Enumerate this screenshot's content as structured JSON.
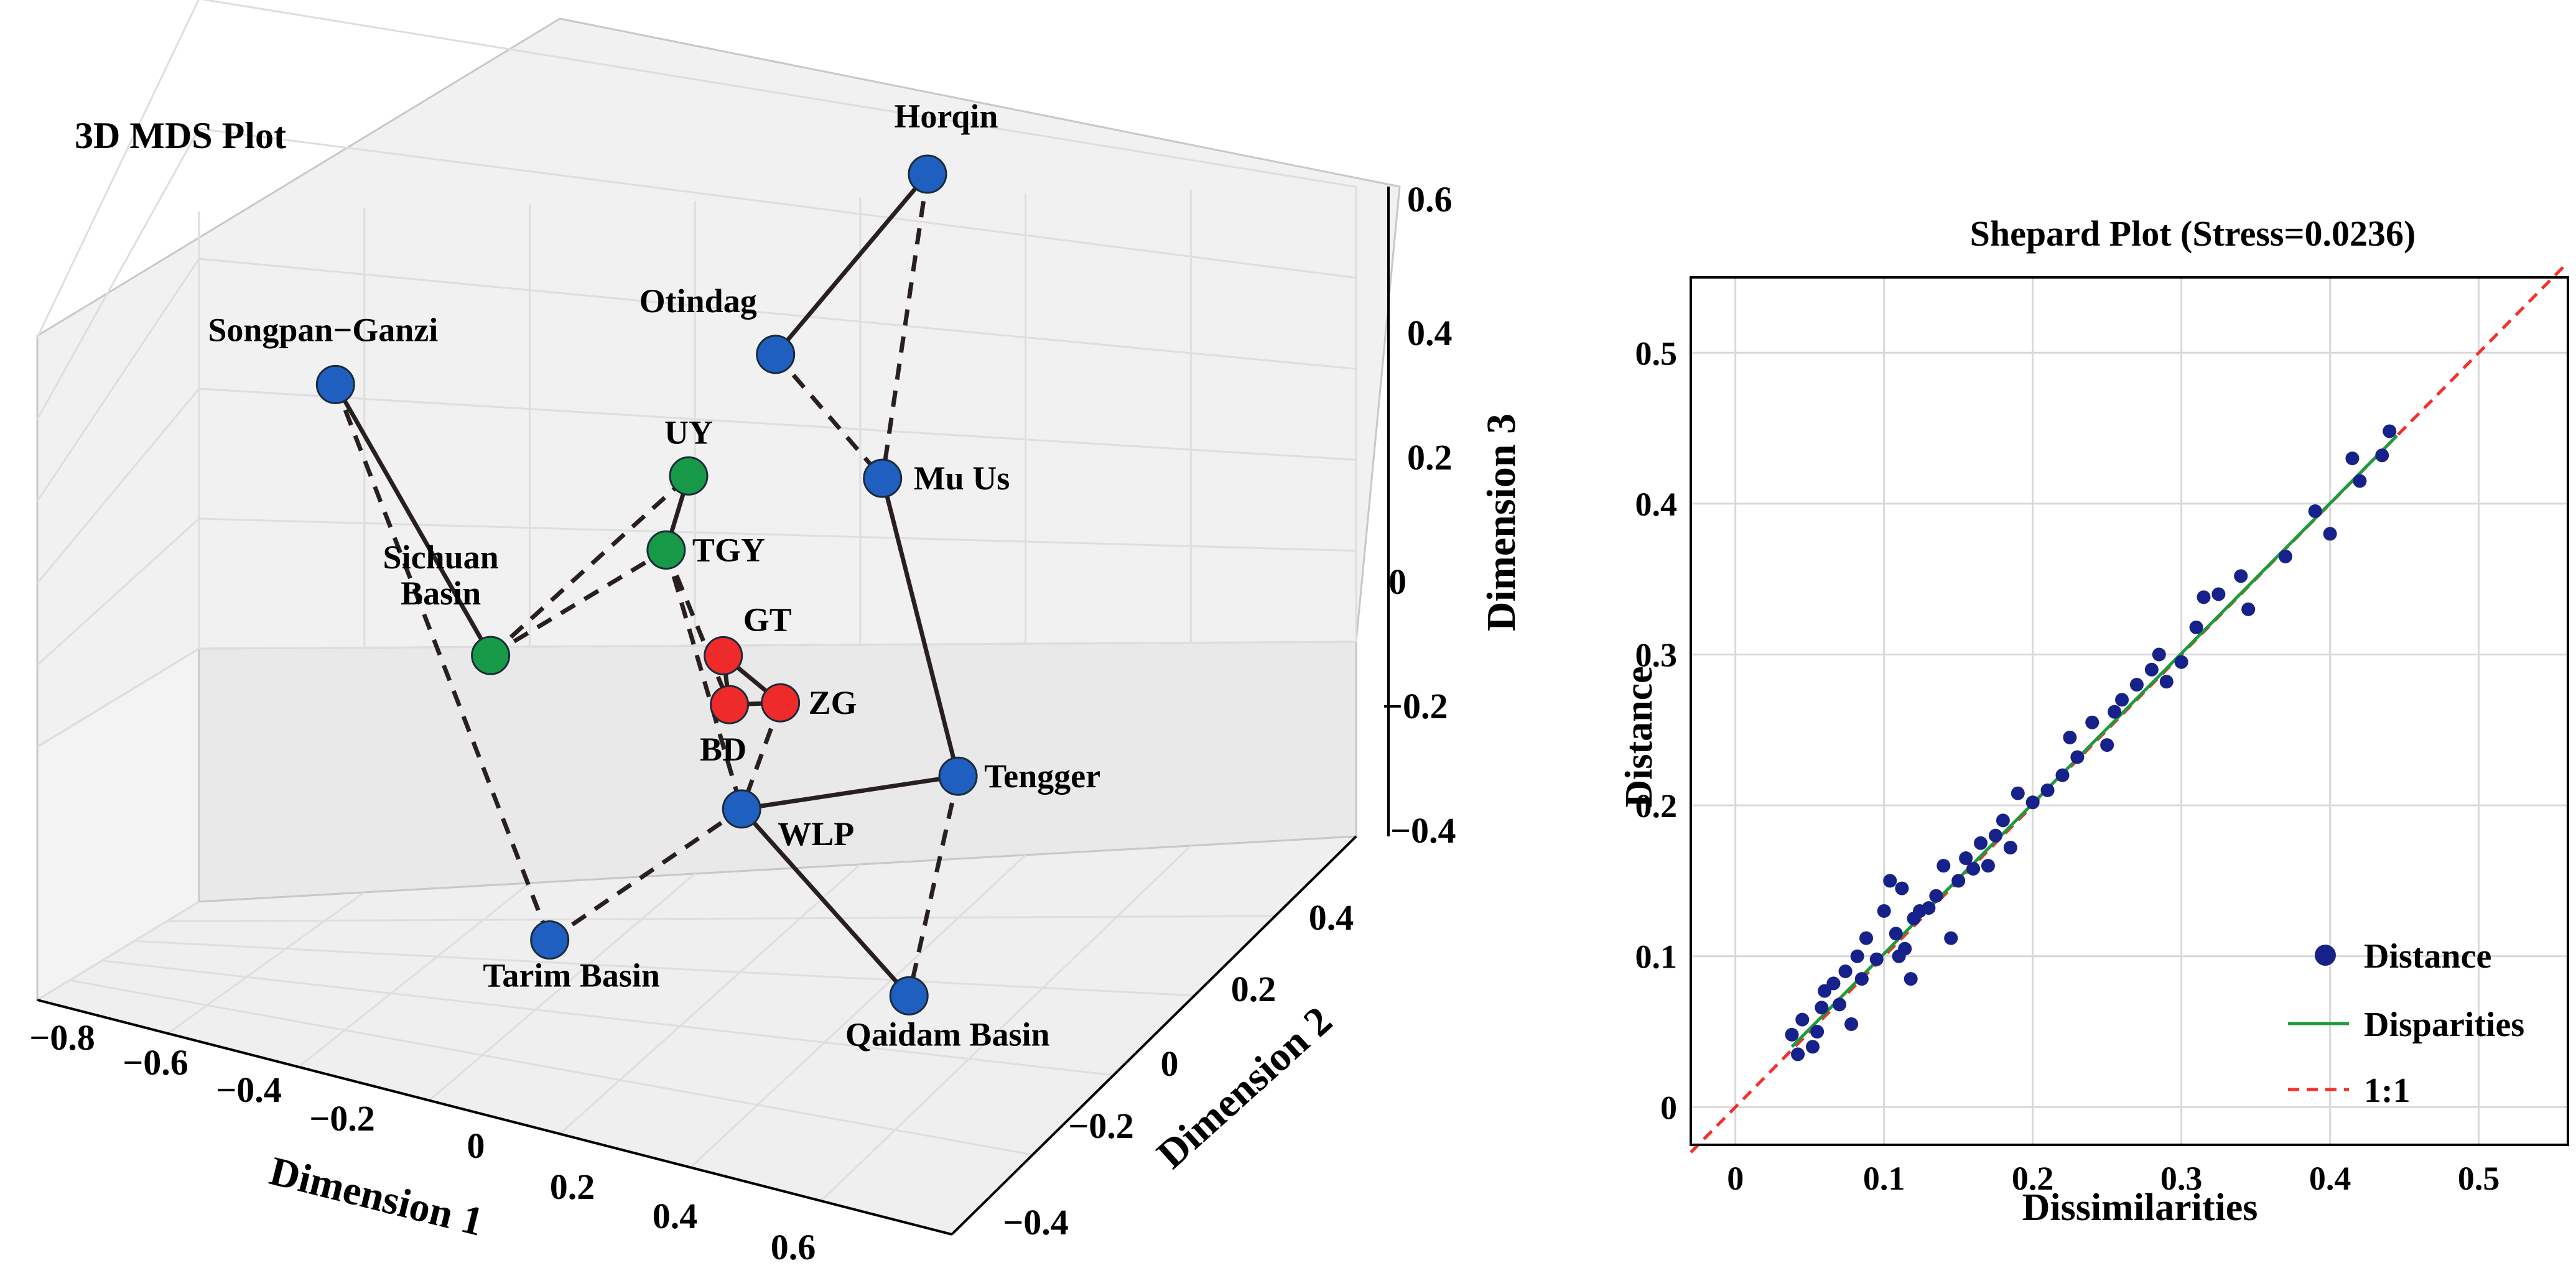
{
  "chart_data": [
    {
      "type": "scatter3d",
      "title": "3D MDS Plot",
      "xlabel": "Dimension 1",
      "ylabel": "Dimension 2",
      "zlabel": "Dimension 3",
      "xticks": [
        "−0.8",
        "−0.6",
        "−0.4",
        "−0.2",
        "0",
        "0.2",
        "0.4",
        "0.6"
      ],
      "yticks": [
        "−0.4",
        "−0.2",
        "0",
        "0.2",
        "0.4"
      ],
      "zticks": [
        "−0.4",
        "−0.2",
        "0",
        "0.2",
        "0.4",
        "0.6"
      ],
      "colors": {
        "blue": "#1f5fbf",
        "green": "#169a48",
        "red": "#ef2a2a"
      },
      "points": [
        {
          "name": "Horqin",
          "label": "Horqin",
          "group": "blue",
          "x": 0.05,
          "y": 0.45,
          "z": 0.45
        },
        {
          "name": "Otindag",
          "label": "Otindag",
          "group": "blue",
          "x": 0.02,
          "y": 0.15,
          "z": 0.37
        },
        {
          "name": "Mu Us",
          "label": "Mu Us",
          "group": "blue",
          "x": 0.05,
          "y": 0.35,
          "z": 0.05
        },
        {
          "name": "Songpan−Ganzi",
          "label": "Songpan−Ganzi",
          "group": "blue",
          "x": -0.75,
          "y": 0.15,
          "z": 0.15
        },
        {
          "name": "Sichuan Basin",
          "label": "Sichuan\nBasin",
          "group": "green",
          "x": -0.4,
          "y": 0.05,
          "z": -0.12
        },
        {
          "name": "UY",
          "label": "UY",
          "group": "green",
          "x": -0.25,
          "y": 0.3,
          "z": 0.02
        },
        {
          "name": "TGY",
          "label": "TGY",
          "group": "green",
          "x": -0.25,
          "y": 0.25,
          "z": -0.06
        },
        {
          "name": "GT",
          "label": "GT",
          "group": "red",
          "x": -0.15,
          "y": 0.25,
          "z": -0.2
        },
        {
          "name": "ZG",
          "label": "ZG",
          "group": "red",
          "x": -0.05,
          "y": 0.25,
          "z": -0.25
        },
        {
          "name": "BD",
          "label": "BD",
          "group": "red",
          "x": -0.1,
          "y": 0.2,
          "z": -0.23
        },
        {
          "name": "Tengger",
          "label": "Tengger",
          "group": "blue",
          "x": 0.3,
          "y": 0.2,
          "z": -0.25
        },
        {
          "name": "WLP",
          "label": "WLP",
          "group": "blue",
          "x": 0.0,
          "y": 0.1,
          "z": -0.3
        },
        {
          "name": "Tarim Basin",
          "label": "Tarim Basin",
          "group": "blue",
          "x": -0.1,
          "y": -0.2,
          "z": -0.32
        },
        {
          "name": "Qaidam Basin",
          "label": "Qaidam Basin",
          "group": "blue",
          "x": 0.45,
          "y": -0.1,
          "z": -0.35
        }
      ],
      "edges": [
        {
          "from": "Otindag",
          "to": "Horqin",
          "style": "solid"
        },
        {
          "from": "Horqin",
          "to": "Mu Us",
          "style": "dashed"
        },
        {
          "from": "Otindag",
          "to": "Mu Us",
          "style": "dashed"
        },
        {
          "from": "Mu Us",
          "to": "Tengger",
          "style": "solid"
        },
        {
          "from": "Songpan−Ganzi",
          "to": "Sichuan Basin",
          "style": "solid"
        },
        {
          "from": "Songpan−Ganzi",
          "to": "Tarim Basin",
          "style": "dashed"
        },
        {
          "from": "Sichuan Basin",
          "to": "UY",
          "style": "dashed"
        },
        {
          "from": "Sichuan Basin",
          "to": "TGY",
          "style": "dashed"
        },
        {
          "from": "UY",
          "to": "TGY",
          "style": "solid"
        },
        {
          "from": "TGY",
          "to": "BD",
          "style": "dashed"
        },
        {
          "from": "TGY",
          "to": "WLP",
          "style": "dashed"
        },
        {
          "from": "GT",
          "to": "ZG",
          "style": "solid"
        },
        {
          "from": "GT",
          "to": "BD",
          "style": "solid"
        },
        {
          "from": "BD",
          "to": "ZG",
          "style": "solid"
        },
        {
          "from": "ZG",
          "to": "WLP",
          "style": "dashed"
        },
        {
          "from": "WLP",
          "to": "Tengger",
          "style": "solid"
        },
        {
          "from": "WLP",
          "to": "Qaidam Basin",
          "style": "solid"
        },
        {
          "from": "Tengger",
          "to": "Qaidam Basin",
          "style": "dashed"
        },
        {
          "from": "Tarim Basin",
          "to": "WLP",
          "style": "dashed"
        }
      ]
    },
    {
      "type": "scatter",
      "title": "Shepard Plot (Stress=0.0236)",
      "xlabel": "Dissimilarities",
      "ylabel": "Distance",
      "xlim": [
        -0.03,
        0.56
      ],
      "ylim": [
        -0.025,
        0.55
      ],
      "xticks": [
        0,
        0.1,
        0.2,
        0.3,
        0.4,
        0.5
      ],
      "yticks": [
        0,
        0.1,
        0.2,
        0.3,
        0.4,
        0.5
      ],
      "xtick_labels": [
        "0",
        "0.1",
        "0.2",
        "0.3",
        "0.4",
        "0.5"
      ],
      "ytick_labels": [
        "0",
        "0.1",
        "0.2",
        "0.3",
        "0.4",
        "0.5"
      ],
      "legend_position": "bottom-right",
      "series": [
        {
          "name": "Distance",
          "kind": "points",
          "color": "#16218a",
          "points": [
            [
              0.038,
              0.048
            ],
            [
              0.042,
              0.035
            ],
            [
              0.045,
              0.058
            ],
            [
              0.052,
              0.04
            ],
            [
              0.055,
              0.05
            ],
            [
              0.058,
              0.066
            ],
            [
              0.06,
              0.077
            ],
            [
              0.066,
              0.082
            ],
            [
              0.07,
              0.068
            ],
            [
              0.074,
              0.09
            ],
            [
              0.078,
              0.055
            ],
            [
              0.082,
              0.1
            ],
            [
              0.085,
              0.085
            ],
            [
              0.088,
              0.112
            ],
            [
              0.095,
              0.098
            ],
            [
              0.1,
              0.13
            ],
            [
              0.104,
              0.15
            ],
            [
              0.108,
              0.115
            ],
            [
              0.11,
              0.1
            ],
            [
              0.112,
              0.145
            ],
            [
              0.114,
              0.105
            ],
            [
              0.118,
              0.085
            ],
            [
              0.12,
              0.125
            ],
            [
              0.124,
              0.13
            ],
            [
              0.13,
              0.132
            ],
            [
              0.135,
              0.14
            ],
            [
              0.14,
              0.16
            ],
            [
              0.145,
              0.112
            ],
            [
              0.15,
              0.15
            ],
            [
              0.155,
              0.165
            ],
            [
              0.16,
              0.158
            ],
            [
              0.165,
              0.175
            ],
            [
              0.17,
              0.16
            ],
            [
              0.175,
              0.18
            ],
            [
              0.18,
              0.19
            ],
            [
              0.185,
              0.172
            ],
            [
              0.19,
              0.208
            ],
            [
              0.2,
              0.202
            ],
            [
              0.21,
              0.21
            ],
            [
              0.22,
              0.22
            ],
            [
              0.225,
              0.245
            ],
            [
              0.23,
              0.232
            ],
            [
              0.24,
              0.255
            ],
            [
              0.25,
              0.24
            ],
            [
              0.255,
              0.262
            ],
            [
              0.26,
              0.27
            ],
            [
              0.27,
              0.28
            ],
            [
              0.28,
              0.29
            ],
            [
              0.285,
              0.3
            ],
            [
              0.29,
              0.282
            ],
            [
              0.3,
              0.295
            ],
            [
              0.31,
              0.318
            ],
            [
              0.315,
              0.338
            ],
            [
              0.325,
              0.34
            ],
            [
              0.34,
              0.352
            ],
            [
              0.345,
              0.33
            ],
            [
              0.37,
              0.365
            ],
            [
              0.39,
              0.395
            ],
            [
              0.4,
              0.38
            ],
            [
              0.415,
              0.43
            ],
            [
              0.42,
              0.415
            ],
            [
              0.435,
              0.432
            ],
            [
              0.44,
              0.448
            ]
          ]
        },
        {
          "name": "Disparities",
          "kind": "line",
          "color": "#1e9a3a",
          "points": [
            [
              0.038,
              0.04
            ],
            [
              0.445,
              0.445
            ]
          ]
        },
        {
          "name": "1:1",
          "kind": "dashed-line",
          "color": "#f5302a",
          "points": [
            [
              -0.03,
              -0.03
            ],
            [
              0.56,
              0.56
            ]
          ]
        }
      ]
    }
  ]
}
